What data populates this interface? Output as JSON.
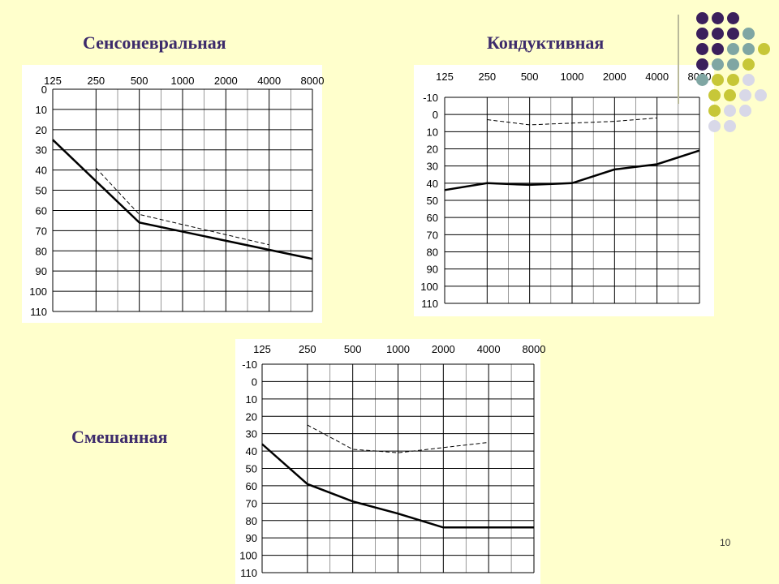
{
  "slide": {
    "number": "10",
    "colors": {
      "background": "#ffffcc",
      "title": "#3d2b6b",
      "purple": "#3b1f5c",
      "teal": "#7fa6a3",
      "olive": "#c7c738",
      "lavender": "#d8d8e8"
    }
  },
  "chart_data": [
    {
      "type": "line",
      "title": "Сенсоневральная",
      "x_tick_labels": [
        "125",
        "250",
        "500",
        "1000",
        "2000",
        "4000",
        "8000"
      ],
      "y_tick_labels": [
        "0",
        "10",
        "20",
        "30",
        "40",
        "50",
        "60",
        "70",
        "80",
        "90",
        "100",
        "110"
      ],
      "ylim": [
        0,
        110
      ],
      "y_inverted": true,
      "grid": true,
      "series": [
        {
          "style": "solid",
          "x": [
            125,
            500,
            8000
          ],
          "y": [
            25,
            66,
            84
          ]
        },
        {
          "style": "dashed",
          "x": [
            250,
            500,
            4000
          ],
          "y": [
            39,
            62,
            77
          ]
        }
      ]
    },
    {
      "type": "line",
      "title": "Кондуктивная",
      "x_tick_labels": [
        "125",
        "250",
        "500",
        "1000",
        "2000",
        "4000",
        "8000"
      ],
      "y_tick_labels": [
        "-10",
        "0",
        "10",
        "20",
        "30",
        "40",
        "50",
        "60",
        "70",
        "80",
        "90",
        "100",
        "110"
      ],
      "ylim": [
        -10,
        110
      ],
      "y_inverted": true,
      "grid": true,
      "series": [
        {
          "style": "solid",
          "x": [
            125,
            250,
            500,
            1000,
            2000,
            4000,
            8000
          ],
          "y": [
            44,
            40,
            41,
            40,
            32,
            29,
            21
          ]
        },
        {
          "style": "dashed",
          "x": [
            250,
            500,
            1000,
            2000,
            4000
          ],
          "y": [
            3,
            6,
            5,
            4,
            2
          ]
        }
      ]
    },
    {
      "type": "line",
      "title": "Смешанная",
      "x_tick_labels": [
        "125",
        "250",
        "500",
        "1000",
        "2000",
        "4000",
        "8000"
      ],
      "y_tick_labels": [
        "-10",
        "0",
        "10",
        "20",
        "30",
        "40",
        "50",
        "60",
        "70",
        "80",
        "90",
        "100",
        "110"
      ],
      "ylim": [
        -10,
        110
      ],
      "y_inverted": true,
      "grid": true,
      "series": [
        {
          "style": "solid",
          "x": [
            125,
            250,
            500,
            1000,
            2000,
            8000
          ],
          "y": [
            36,
            59,
            69,
            76,
            84,
            84
          ]
        },
        {
          "style": "dashed",
          "x": [
            250,
            500,
            1000,
            2000,
            4000
          ],
          "y": [
            25,
            39,
            41,
            38,
            35
          ]
        }
      ]
    }
  ]
}
